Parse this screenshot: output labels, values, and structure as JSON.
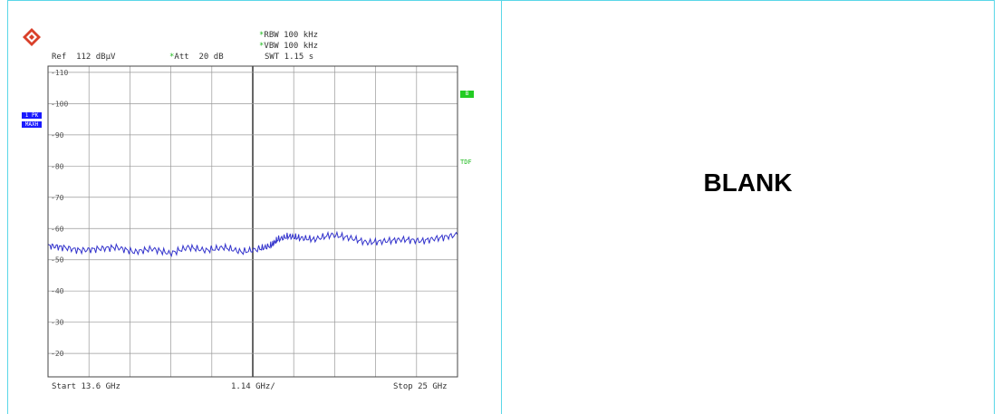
{
  "right_panel": {
    "label": "BLANK"
  },
  "header": {
    "rbw": "RBW 100 kHz",
    "vbw": "VBW 100 kHz",
    "swt": "SWT 1.15 s",
    "ref": "Ref  112 dBµV",
    "att": "Att  20 dB",
    "marker_star": "*"
  },
  "side": {
    "trace_badge_line1": "1 PK",
    "trace_badge_line2": "MAXH",
    "right_box": "B",
    "right_tag": "TDF"
  },
  "footer": {
    "start": "Start 13.6 GHz",
    "span_per_div": "1.14 GHz/",
    "stop": "Stop 25 GHz"
  },
  "colors": {
    "trace": "#3333cc",
    "grid": "#999999",
    "frame": "#5ad7e8",
    "accent": "#22bb22",
    "badge": "#1a1aff"
  },
  "chart_data": {
    "type": "line",
    "title": "",
    "xlabel": "",
    "ylabel": "",
    "xlim": [
      13.6,
      25
    ],
    "ylim": [
      12.5,
      112
    ],
    "grid": true,
    "y_tick_labels": [
      "110",
      "100",
      "90",
      "80",
      "70",
      "60",
      "50",
      "40",
      "30",
      "20"
    ],
    "y_ticks": [
      110,
      100,
      90,
      80,
      70,
      60,
      50,
      40,
      30,
      20
    ],
    "series": [
      {
        "x": [
          13.6,
          14.0,
          14.5,
          15.0,
          15.5,
          16.0,
          16.5,
          17.0,
          17.5,
          18.0,
          18.5,
          19.0,
          19.5,
          19.8,
          20.0,
          20.3,
          20.6,
          21.0,
          21.5,
          22.0,
          22.5,
          23.0,
          23.5,
          24.0,
          24.5,
          25.0
        ],
        "values": [
          54.5,
          54.0,
          53.0,
          53.5,
          54.0,
          52.5,
          53.5,
          52.0,
          54.0,
          53.0,
          54.0,
          52.5,
          53.5,
          54.5,
          56.5,
          57.5,
          57.0,
          56.5,
          58.0,
          57.0,
          55.5,
          56.0,
          56.5,
          56.0,
          57.0,
          58.0
        ]
      }
    ]
  }
}
